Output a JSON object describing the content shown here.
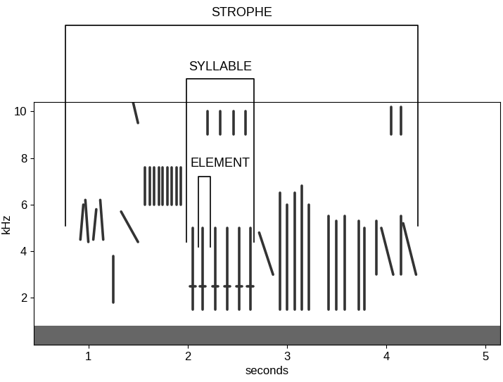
{
  "chart_data": {
    "type": "spectrogram",
    "x_label": "seconds",
    "y_label": "kHz",
    "xlim": [
      0.45,
      5.15
    ],
    "ylim": [
      0,
      10.4
    ],
    "xticks": [
      1,
      2,
      3,
      4,
      5
    ],
    "yticks": [
      2,
      4,
      6,
      8,
      10
    ],
    "color": "#333333",
    "noise_band": [
      0,
      0.8
    ],
    "strokes": [
      {
        "t": [
          0.92,
          0.95
        ],
        "f": [
          4.5,
          6.0
        ]
      },
      {
        "t": [
          0.97,
          1.0
        ],
        "f": [
          6.2,
          4.4
        ]
      },
      {
        "t": [
          1.05,
          1.08
        ],
        "f": [
          4.5,
          5.8
        ]
      },
      {
        "t": [
          1.12,
          1.15
        ],
        "f": [
          6.2,
          4.5
        ]
      },
      {
        "t": [
          1.25,
          1.25
        ],
        "f": [
          1.8,
          3.8
        ]
      },
      {
        "t": [
          1.33,
          1.5
        ],
        "f": [
          5.7,
          4.4
        ]
      },
      {
        "t": [
          1.45,
          1.5
        ],
        "f": [
          10.4,
          9.5
        ]
      },
      {
        "t": [
          1.57,
          1.57
        ],
        "f": [
          6.0,
          7.6
        ]
      },
      {
        "t": [
          1.62,
          1.62
        ],
        "f": [
          6.0,
          7.6
        ]
      },
      {
        "t": [
          1.66,
          1.66
        ],
        "f": [
          6.0,
          7.6
        ]
      },
      {
        "t": [
          1.71,
          1.71
        ],
        "f": [
          6.0,
          7.6
        ]
      },
      {
        "t": [
          1.75,
          1.75
        ],
        "f": [
          6.0,
          7.6
        ]
      },
      {
        "t": [
          1.8,
          1.8
        ],
        "f": [
          6.0,
          7.6
        ]
      },
      {
        "t": [
          1.84,
          1.84
        ],
        "f": [
          6.0,
          7.6
        ]
      },
      {
        "t": [
          1.89,
          1.89
        ],
        "f": [
          6.0,
          7.6
        ]
      },
      {
        "t": [
          1.93,
          1.93
        ],
        "f": [
          6.0,
          7.6
        ]
      },
      {
        "t": [
          2.05,
          2.05
        ],
        "f": [
          1.5,
          5.0
        ]
      },
      {
        "t": [
          2.15,
          2.15
        ],
        "f": [
          1.5,
          5.0
        ]
      },
      {
        "t": [
          2.28,
          2.28
        ],
        "f": [
          1.5,
          5.0
        ]
      },
      {
        "t": [
          2.4,
          2.4
        ],
        "f": [
          1.5,
          5.0
        ]
      },
      {
        "t": [
          2.52,
          2.52
        ],
        "f": [
          1.5,
          5.0
        ]
      },
      {
        "t": [
          2.63,
          2.63
        ],
        "f": [
          1.5,
          5.0
        ]
      },
      {
        "t": [
          2.02,
          2.08
        ],
        "f": [
          2.5,
          2.5
        ]
      },
      {
        "t": [
          2.12,
          2.18
        ],
        "f": [
          2.5,
          2.5
        ]
      },
      {
        "t": [
          2.25,
          2.31
        ],
        "f": [
          2.5,
          2.5
        ]
      },
      {
        "t": [
          2.37,
          2.43
        ],
        "f": [
          2.5,
          2.5
        ]
      },
      {
        "t": [
          2.49,
          2.55
        ],
        "f": [
          2.5,
          2.5
        ]
      },
      {
        "t": [
          2.6,
          2.66
        ],
        "f": [
          2.5,
          2.5
        ]
      },
      {
        "t": [
          2.2,
          2.2
        ],
        "f": [
          9.0,
          10.0
        ]
      },
      {
        "t": [
          2.33,
          2.33
        ],
        "f": [
          9.0,
          10.0
        ]
      },
      {
        "t": [
          2.46,
          2.46
        ],
        "f": [
          9.0,
          10.0
        ]
      },
      {
        "t": [
          2.58,
          2.58
        ],
        "f": [
          9.0,
          10.0
        ]
      },
      {
        "t": [
          2.72,
          2.86
        ],
        "f": [
          4.8,
          3.0
        ]
      },
      {
        "t": [
          2.93,
          2.93
        ],
        "f": [
          1.5,
          6.5
        ]
      },
      {
        "t": [
          3.0,
          3.0
        ],
        "f": [
          1.5,
          6.0
        ]
      },
      {
        "t": [
          3.08,
          3.08
        ],
        "f": [
          1.5,
          6.5
        ]
      },
      {
        "t": [
          3.15,
          3.15
        ],
        "f": [
          1.5,
          6.8
        ]
      },
      {
        "t": [
          3.22,
          3.22
        ],
        "f": [
          1.5,
          6.0
        ]
      },
      {
        "t": [
          3.42,
          3.42
        ],
        "f": [
          1.5,
          5.5
        ]
      },
      {
        "t": [
          3.5,
          3.5
        ],
        "f": [
          1.5,
          5.3
        ]
      },
      {
        "t": [
          3.58,
          3.58
        ],
        "f": [
          1.5,
          5.5
        ]
      },
      {
        "t": [
          3.72,
          3.72
        ],
        "f": [
          1.5,
          5.3
        ]
      },
      {
        "t": [
          3.78,
          3.78
        ],
        "f": [
          1.5,
          5.0
        ]
      },
      {
        "t": [
          3.9,
          3.9
        ],
        "f": [
          3.0,
          5.3
        ]
      },
      {
        "t": [
          3.95,
          4.07
        ],
        "f": [
          5.0,
          3.0
        ]
      },
      {
        "t": [
          4.15,
          4.15
        ],
        "f": [
          3.0,
          5.5
        ]
      },
      {
        "t": [
          4.17,
          4.3
        ],
        "f": [
          5.2,
          3.0
        ]
      },
      {
        "t": [
          4.05,
          4.05
        ],
        "f": [
          9.0,
          10.2
        ]
      },
      {
        "t": [
          4.15,
          4.15
        ],
        "f": [
          9.0,
          10.2
        ]
      }
    ],
    "annotations": [
      {
        "label": "STROPHE",
        "start": 0.77,
        "end": 4.32
      },
      {
        "label": "SYLLABLE",
        "start": 1.99,
        "end": 2.67
      },
      {
        "label": "ELEMENT",
        "start": 2.11,
        "end": 2.23
      }
    ]
  }
}
